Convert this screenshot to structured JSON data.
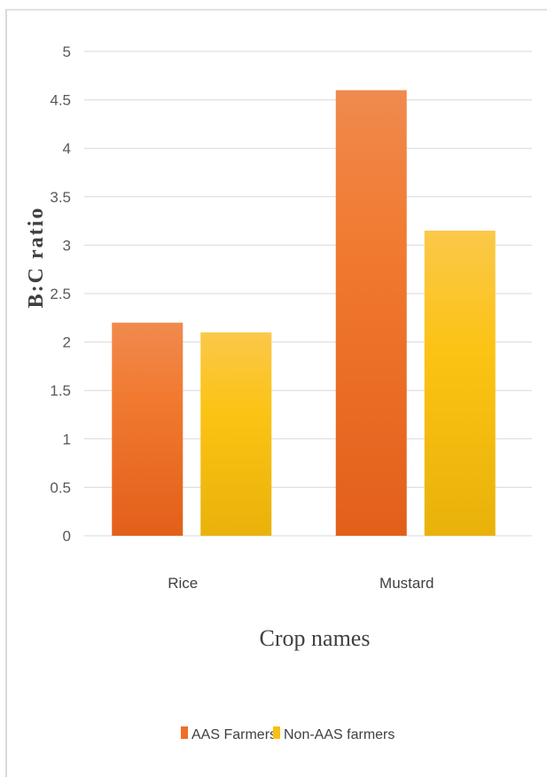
{
  "chart_data": {
    "type": "bar",
    "categories": [
      "Rice",
      "Mustard"
    ],
    "series": [
      {
        "name": "AAS Farmers",
        "values": [
          2.2,
          4.6
        ]
      },
      {
        "name": "Non-AAS farmers",
        "values": [
          2.1,
          3.15
        ]
      }
    ],
    "xlabel": "Crop names",
    "ylabel": "B:C ratio",
    "ylim": [
      0,
      5
    ],
    "yticks": [
      "0",
      "0.5",
      "1",
      "1.5",
      "2",
      "2.5",
      "3",
      "3.5",
      "4",
      "4.5",
      "5"
    ],
    "grid": true,
    "legend_position": "bottom",
    "colors": {
      "AAS Farmers": "#ee7027",
      "Non-AAS farmers": "#f8bf12",
      "gridline": "#d9d9d9"
    }
  }
}
